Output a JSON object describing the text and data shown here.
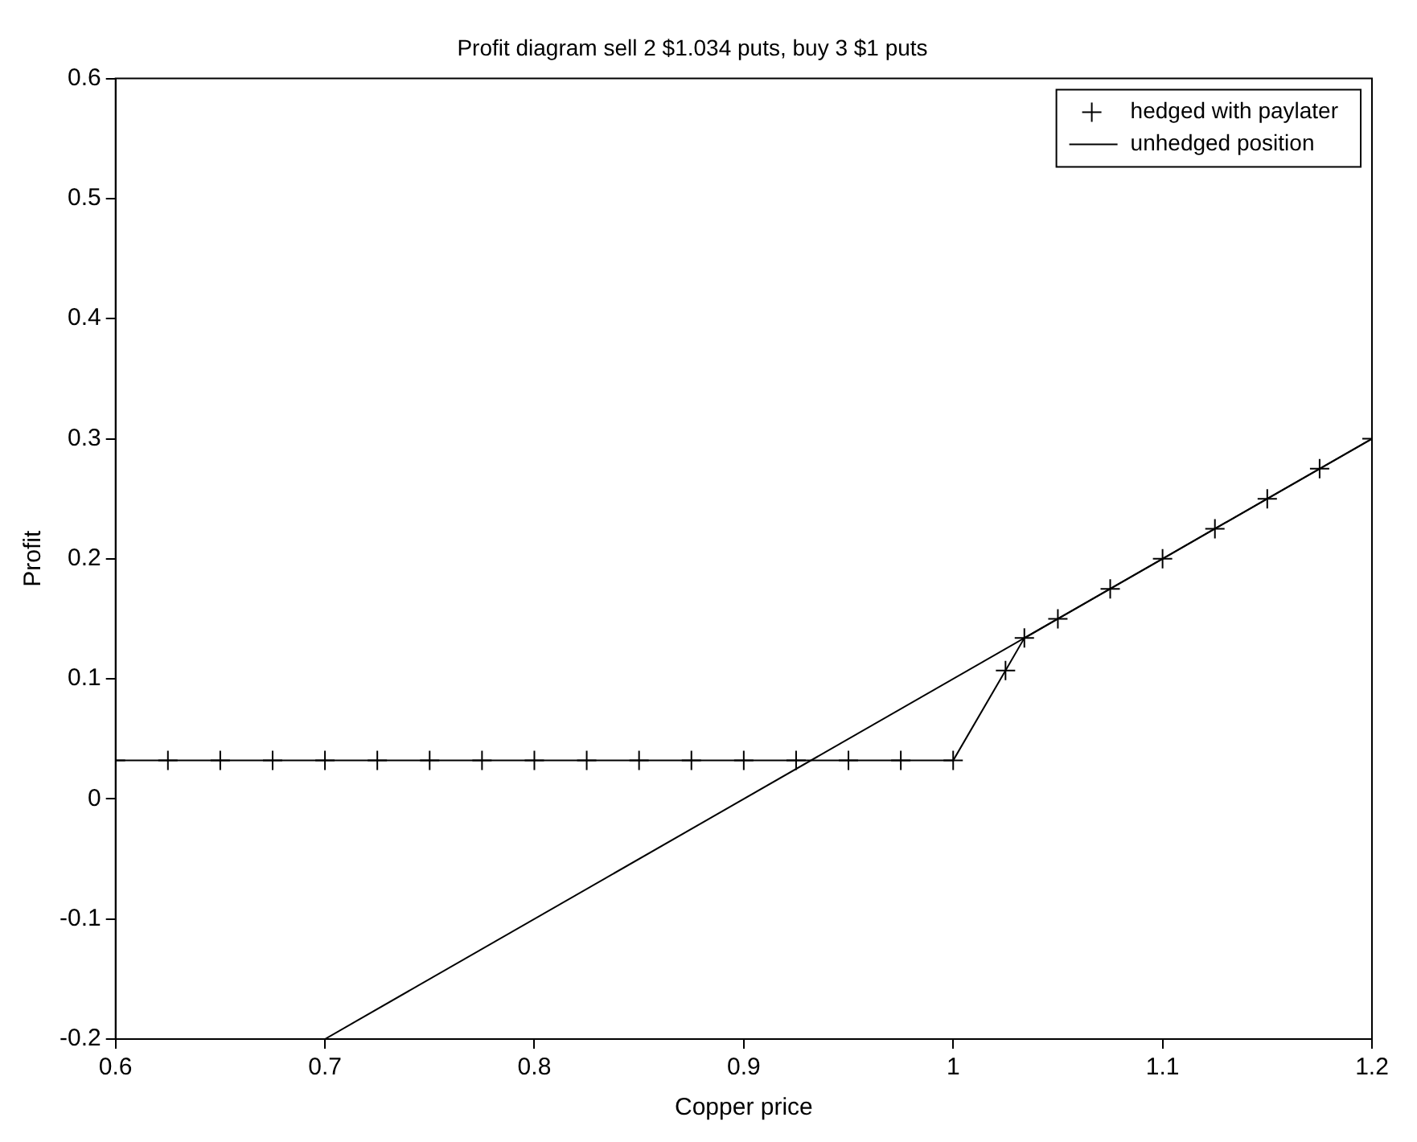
{
  "chart_data": {
    "type": "line",
    "title": "Profit diagram sell 2 $1.034 puts, buy 3 $1 puts",
    "xlabel": "Copper price",
    "ylabel": "Profit",
    "series": [
      {
        "name": "hedged with paylater",
        "color": "#000000",
        "marker": "cross",
        "x": [
          0.6,
          0.625,
          0.65,
          0.675,
          0.7,
          0.725,
          0.75,
          0.775,
          0.8,
          0.825,
          0.85,
          0.875,
          0.9,
          0.925,
          0.95,
          0.975,
          1.0,
          1.025,
          1.034,
          1.05,
          1.075,
          1.1,
          1.125,
          1.15,
          1.175,
          1.2
        ],
        "values": [
          0.032,
          0.032,
          0.032,
          0.032,
          0.032,
          0.032,
          0.032,
          0.032,
          0.032,
          0.032,
          0.032,
          0.032,
          0.032,
          0.032,
          0.032,
          0.032,
          0.032,
          0.107,
          0.134,
          0.15,
          0.175,
          0.2,
          0.225,
          0.25,
          0.275,
          0.3
        ]
      },
      {
        "name": "unhedged position",
        "color": "#000000",
        "marker": "none",
        "x": [
          0.7,
          1.2
        ],
        "values": [
          -0.2,
          0.3
        ]
      }
    ],
    "xlim": [
      0.6,
      1.2
    ],
    "xticks": [
      0.6,
      0.7,
      0.8,
      0.9,
      1,
      1.1,
      1.2
    ],
    "ylim": [
      -0.2,
      0.6
    ],
    "yticks": [
      -0.2,
      -0.1,
      0,
      0.1,
      0.2,
      0.3,
      0.4,
      0.5,
      0.6
    ],
    "grid": false,
    "legend": "top right",
    "line_style": "solid"
  }
}
